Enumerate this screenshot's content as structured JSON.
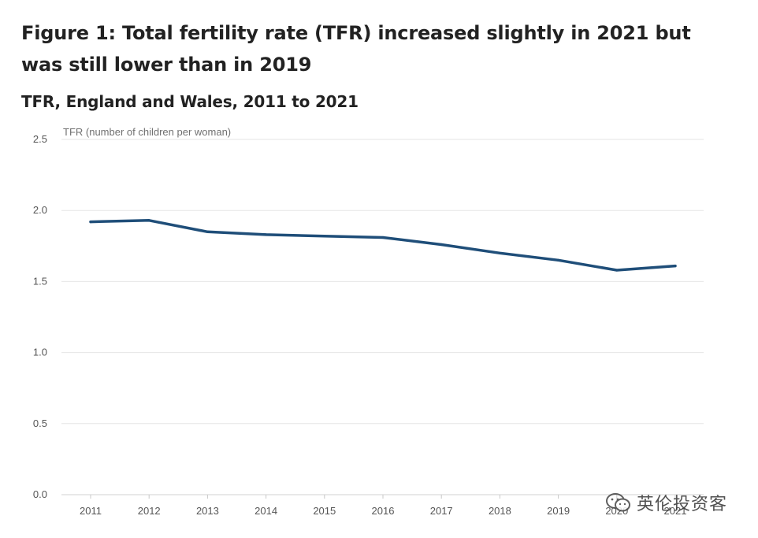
{
  "figure": {
    "title_line1": "Figure 1: Total fertility rate (TFR) increased slightly in 2021 but",
    "title_line2": "was still lower than in 2019",
    "subtitle": "TFR, England and Wales, 2011 to 2021"
  },
  "chart_data": {
    "type": "line",
    "title": "TFR, England and Wales, 2011 to 2021",
    "ylabel": "TFR (number of children per woman)",
    "xlabel": "",
    "x": [
      "2011",
      "2012",
      "2013",
      "2014",
      "2015",
      "2016",
      "2017",
      "2018",
      "2019",
      "2020",
      "2021"
    ],
    "series": [
      {
        "values": [
          1.92,
          1.93,
          1.85,
          1.83,
          1.82,
          1.81,
          1.76,
          1.7,
          1.65,
          1.58,
          1.61
        ]
      }
    ],
    "y_ticks": [
      "0.0",
      "0.5",
      "1.0",
      "1.5",
      "2.0",
      "2.5"
    ],
    "ylim": [
      0,
      2.5
    ],
    "grid": true,
    "colors": {
      "line": "#1f4e79",
      "grid": "#e6e6e6"
    }
  },
  "watermark": {
    "text": "英伦投资客",
    "icon": "wechat-icon"
  }
}
